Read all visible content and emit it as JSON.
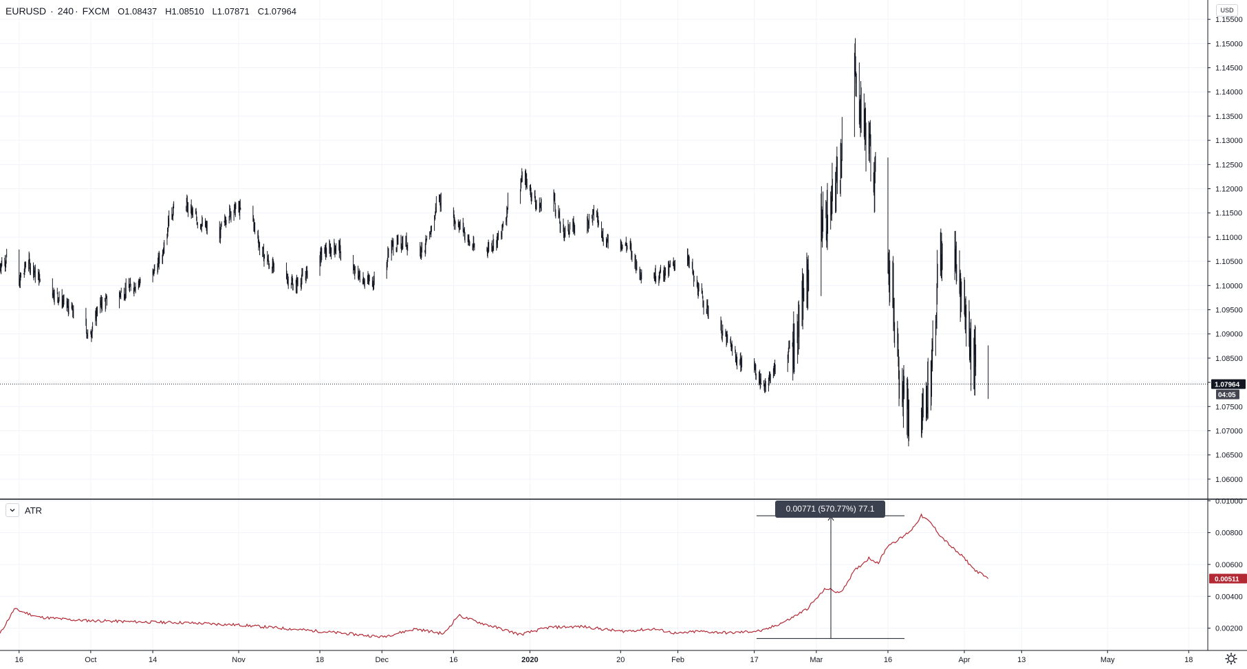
{
  "header": {
    "symbol": "EURUSD",
    "separator": "·",
    "interval": "240",
    "exchange": "FXCM",
    "open": "O1.08437",
    "high": "H1.08510",
    "low": "L1.07871",
    "close": "C1.07964",
    "currency": "USD"
  },
  "price_axis": {
    "ticks": [
      "1.15500",
      "1.15000",
      "1.14500",
      "1.14000",
      "1.13500",
      "1.13000",
      "1.12500",
      "1.12000",
      "1.11500",
      "1.11000",
      "1.10500",
      "1.10000",
      "1.09500",
      "1.09000",
      "1.08500",
      "1.08000",
      "1.07500",
      "1.07000",
      "1.06500",
      "1.06000"
    ],
    "last_price_label": "1.07964",
    "countdown_label": "04:05"
  },
  "atr_pane": {
    "title": "ATR",
    "ticks": [
      "0.01000",
      "0.00800",
      "0.00600",
      "0.00400",
      "0.00200"
    ],
    "last_value_label": "0.00511",
    "measure_label": "0.00771 (570.77%) 77.1"
  },
  "time_axis": {
    "labels": [
      "16",
      "Oct",
      "14",
      "Nov",
      "18",
      "Dec",
      "16",
      "2020",
      "20",
      "Feb",
      "17",
      "Mar",
      "16",
      "Apr",
      "13",
      "May",
      "18"
    ]
  },
  "chart_data": [
    {
      "type": "candlestick",
      "title": "EURUSD · 240 · FXCM",
      "x_range": [
        "2019-09-12",
        "2020-05-22"
      ],
      "ylim": [
        1.056,
        1.159
      ],
      "grid": true,
      "last_value": 1.07964,
      "ohlc_last": {
        "open": 1.08437,
        "high": 1.0851,
        "low": 1.07871,
        "close": 1.07964
      },
      "close_path": [
        {
          "x": "2019-09-12",
          "y": 1.104
        },
        {
          "x": "2019-09-14",
          "y": 1.106
        },
        {
          "x": "2019-09-16",
          "y": 1.1
        },
        {
          "x": "2019-09-18",
          "y": 1.105
        },
        {
          "x": "2019-09-20",
          "y": 1.102
        },
        {
          "x": "2019-09-23",
          "y": 1.099
        },
        {
          "x": "2019-09-26",
          "y": 1.096
        },
        {
          "x": "2019-09-29",
          "y": 1.093
        },
        {
          "x": "2019-10-01",
          "y": 1.0895
        },
        {
          "x": "2019-10-03",
          "y": 1.096
        },
        {
          "x": "2019-10-07",
          "y": 1.098
        },
        {
          "x": "2019-10-10",
          "y": 1.1
        },
        {
          "x": "2019-10-14",
          "y": 1.102
        },
        {
          "x": "2019-10-16",
          "y": 1.106
        },
        {
          "x": "2019-10-18",
          "y": 1.115
        },
        {
          "x": "2019-10-21",
          "y": 1.117
        },
        {
          "x": "2019-10-24",
          "y": 1.113
        },
        {
          "x": "2019-10-28",
          "y": 1.11
        },
        {
          "x": "2019-10-30",
          "y": 1.115
        },
        {
          "x": "2019-11-01",
          "y": 1.116
        },
        {
          "x": "2019-11-04",
          "y": 1.114
        },
        {
          "x": "2019-11-06",
          "y": 1.107
        },
        {
          "x": "2019-11-08",
          "y": 1.104
        },
        {
          "x": "2019-11-11",
          "y": 1.102
        },
        {
          "x": "2019-11-13",
          "y": 1.1
        },
        {
          "x": "2019-11-15",
          "y": 1.102
        },
        {
          "x": "2019-11-19",
          "y": 1.107
        },
        {
          "x": "2019-11-22",
          "y": 1.108
        },
        {
          "x": "2019-11-25",
          "y": 1.103
        },
        {
          "x": "2019-11-28",
          "y": 1.101
        },
        {
          "x": "2019-12-01",
          "y": 1.101
        },
        {
          "x": "2019-12-03",
          "y": 1.108
        },
        {
          "x": "2019-12-06",
          "y": 1.109
        },
        {
          "x": "2019-12-09",
          "y": 1.107
        },
        {
          "x": "2019-12-11",
          "y": 1.109
        },
        {
          "x": "2019-12-13",
          "y": 1.118
        },
        {
          "x": "2019-12-16",
          "y": 1.114
        },
        {
          "x": "2019-12-18",
          "y": 1.112
        },
        {
          "x": "2019-12-20",
          "y": 1.108
        },
        {
          "x": "2019-12-23",
          "y": 1.1075
        },
        {
          "x": "2019-12-26",
          "y": 1.11
        },
        {
          "x": "2019-12-28",
          "y": 1.118
        },
        {
          "x": "2019-12-31",
          "y": 1.1225
        },
        {
          "x": "2020-01-03",
          "y": 1.116
        },
        {
          "x": "2020-01-06",
          "y": 1.119
        },
        {
          "x": "2020-01-08",
          "y": 1.111
        },
        {
          "x": "2020-01-10",
          "y": 1.112
        },
        {
          "x": "2020-01-13",
          "y": 1.113
        },
        {
          "x": "2020-01-15",
          "y": 1.115
        },
        {
          "x": "2020-01-17",
          "y": 1.109
        },
        {
          "x": "2020-01-20",
          "y": 1.109
        },
        {
          "x": "2020-01-22",
          "y": 1.108
        },
        {
          "x": "2020-01-24",
          "y": 1.103
        },
        {
          "x": "2020-01-27",
          "y": 1.102
        },
        {
          "x": "2020-01-30",
          "y": 1.103
        },
        {
          "x": "2020-02-03",
          "y": 1.107
        },
        {
          "x": "2020-02-05",
          "y": 1.1
        },
        {
          "x": "2020-02-07",
          "y": 1.096
        },
        {
          "x": "2020-02-10",
          "y": 1.091
        },
        {
          "x": "2020-02-12",
          "y": 1.088
        },
        {
          "x": "2020-02-14",
          "y": 1.084
        },
        {
          "x": "2020-02-17",
          "y": 1.0835
        },
        {
          "x": "2020-02-19",
          "y": 1.079
        },
        {
          "x": "2020-02-21",
          "y": 1.082
        },
        {
          "x": "2020-02-24",
          "y": 1.086
        },
        {
          "x": "2020-02-26",
          "y": 1.089
        },
        {
          "x": "2020-02-28",
          "y": 1.1
        },
        {
          "x": "2020-03-02",
          "y": 1.113
        },
        {
          "x": "2020-03-04",
          "y": 1.114
        },
        {
          "x": "2020-03-06",
          "y": 1.125
        },
        {
          "x": "2020-03-09",
          "y": 1.145
        },
        {
          "x": "2020-03-10",
          "y": 1.139
        },
        {
          "x": "2020-03-12",
          "y": 1.13
        },
        {
          "x": "2020-03-15",
          "y": 1.115
        },
        {
          "x": "2020-03-17",
          "y": 1.1
        },
        {
          "x": "2020-03-19",
          "y": 1.08
        },
        {
          "x": "2020-03-21",
          "y": 1.07
        },
        {
          "x": "2020-03-23",
          "y": 1.072
        },
        {
          "x": "2020-03-25",
          "y": 1.08
        },
        {
          "x": "2020-03-27",
          "y": 1.105
        },
        {
          "x": "2020-03-29",
          "y": 1.11
        },
        {
          "x": "2020-03-31",
          "y": 1.102
        },
        {
          "x": "2020-04-02",
          "y": 1.092
        },
        {
          "x": "2020-04-03",
          "y": 1.085
        },
        {
          "x": "2020-04-06",
          "y": 1.07964
        }
      ],
      "high_low_extremes": {
        "max_high": 1.1495,
        "min_low": 1.0636
      }
    },
    {
      "type": "line",
      "title": "ATR",
      "ylim": [
        0.0006,
        0.0101
      ],
      "last_value": 0.00511,
      "measurement": {
        "from": 0.00135,
        "to": 0.00906,
        "change": 0.00771,
        "percent": 570.77,
        "bars": 77.1
      },
      "series": [
        {
          "color": "#b22833",
          "points": [
            {
              "x": "2019-09-12",
              "y": 0.00165
            },
            {
              "x": "2019-09-15",
              "y": 0.0032
            },
            {
              "x": "2019-09-20",
              "y": 0.0027
            },
            {
              "x": "2019-09-28",
              "y": 0.0025
            },
            {
              "x": "2019-10-10",
              "y": 0.0024
            },
            {
              "x": "2019-10-20",
              "y": 0.00235
            },
            {
              "x": "2019-11-01",
              "y": 0.0022
            },
            {
              "x": "2019-11-12",
              "y": 0.00195
            },
            {
              "x": "2019-11-22",
              "y": 0.0017
            },
            {
              "x": "2019-12-01",
              "y": 0.00145
            },
            {
              "x": "2019-12-08",
              "y": 0.00195
            },
            {
              "x": "2019-12-14",
              "y": 0.00165
            },
            {
              "x": "2019-12-17",
              "y": 0.0028
            },
            {
              "x": "2019-12-22",
              "y": 0.0023
            },
            {
              "x": "2019-12-30",
              "y": 0.0016
            },
            {
              "x": "2020-01-05",
              "y": 0.00205
            },
            {
              "x": "2020-01-12",
              "y": 0.0021
            },
            {
              "x": "2020-01-20",
              "y": 0.0018
            },
            {
              "x": "2020-01-27",
              "y": 0.00195
            },
            {
              "x": "2020-02-01",
              "y": 0.00165
            },
            {
              "x": "2020-02-05",
              "y": 0.0018
            },
            {
              "x": "2020-02-12",
              "y": 0.0017
            },
            {
              "x": "2020-02-19",
              "y": 0.00185
            },
            {
              "x": "2020-02-24",
              "y": 0.0025
            },
            {
              "x": "2020-02-28",
              "y": 0.0032
            },
            {
              "x": "2020-03-03",
              "y": 0.0045
            },
            {
              "x": "2020-03-06",
              "y": 0.0042
            },
            {
              "x": "2020-03-09",
              "y": 0.0056
            },
            {
              "x": "2020-03-12",
              "y": 0.0064
            },
            {
              "x": "2020-03-14",
              "y": 0.0061
            },
            {
              "x": "2020-03-16",
              "y": 0.0072
            },
            {
              "x": "2020-03-19",
              "y": 0.0077
            },
            {
              "x": "2020-03-21",
              "y": 0.0082
            },
            {
              "x": "2020-03-23",
              "y": 0.00906
            },
            {
              "x": "2020-03-25",
              "y": 0.0086
            },
            {
              "x": "2020-03-27",
              "y": 0.0078
            },
            {
              "x": "2020-03-30",
              "y": 0.0069
            },
            {
              "x": "2020-04-01",
              "y": 0.0064
            },
            {
              "x": "2020-04-03",
              "y": 0.0057
            },
            {
              "x": "2020-04-06",
              "y": 0.00511
            }
          ]
        }
      ]
    }
  ]
}
